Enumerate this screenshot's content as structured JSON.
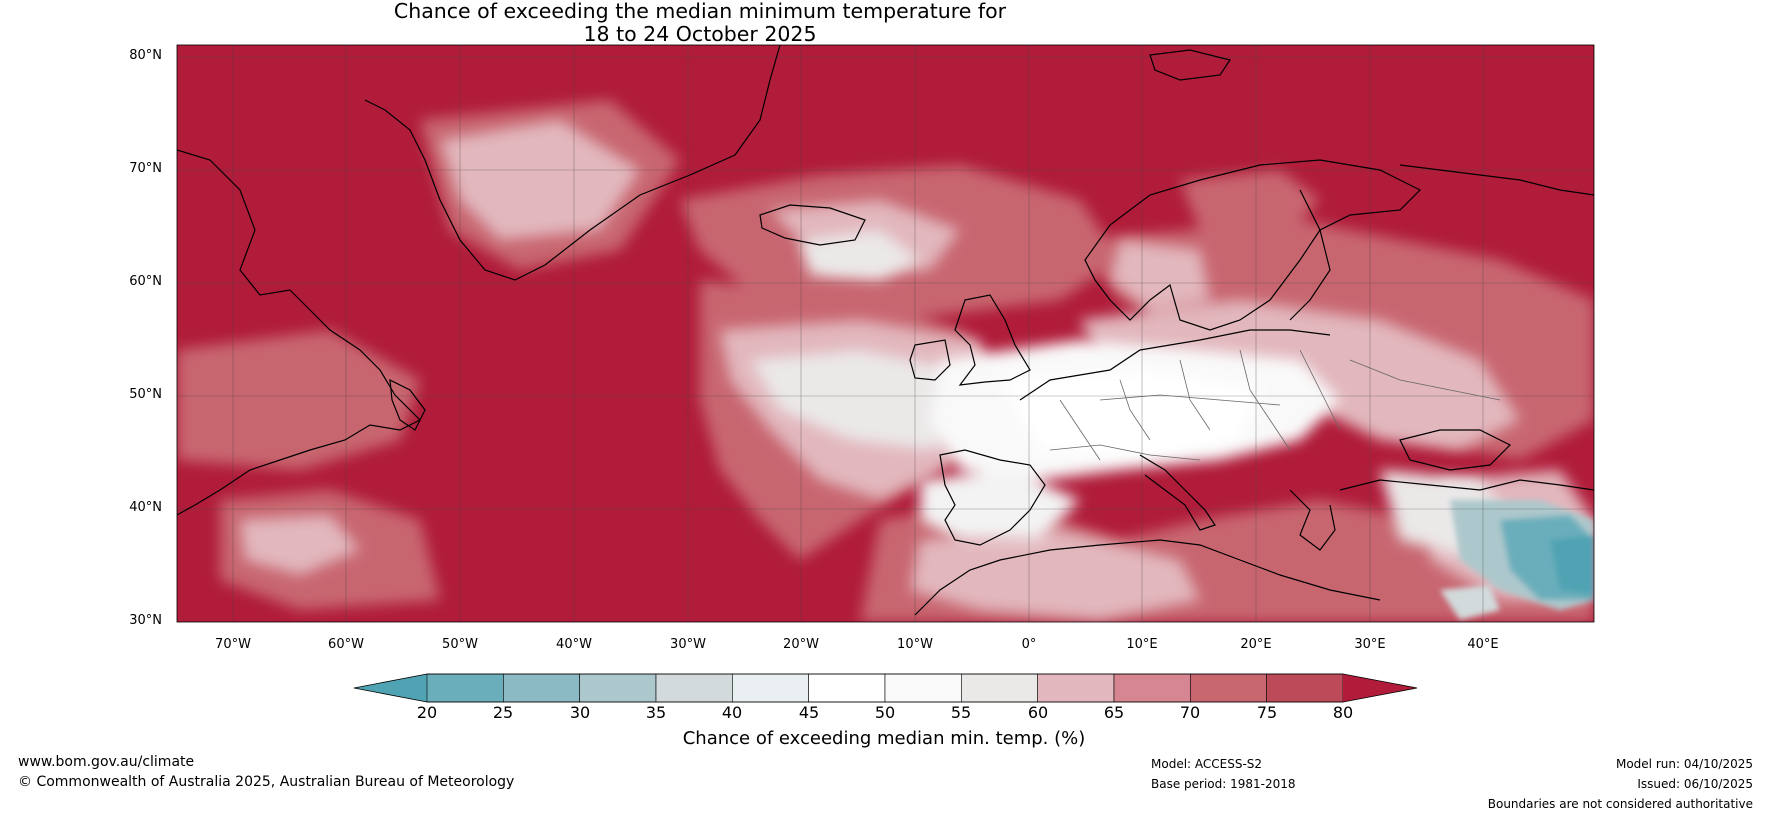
{
  "title_line1": "Chance of exceeding the median minimum temperature for",
  "title_line2": "18 to 24 October 2025",
  "lat_labels": [
    "80°N",
    "70°N",
    "60°N",
    "50°N",
    "40°N",
    "30°N"
  ],
  "lon_labels": [
    "70°W",
    "60°W",
    "50°W",
    "40°W",
    "30°W",
    "20°W",
    "10°W",
    "0°",
    "10°E",
    "20°E",
    "30°E",
    "40°E"
  ],
  "colorbar": {
    "ticks": [
      "20",
      "25",
      "30",
      "35",
      "40",
      "45",
      "50",
      "55",
      "60",
      "65",
      "70",
      "75",
      "80"
    ],
    "colors": [
      "#4fa3b3",
      "#6aaebb",
      "#8bb9c4",
      "#adc8cc",
      "#d2dadb",
      "#eaf0f1",
      "#ffffff",
      "#f9f9f9",
      "#ebe8e8",
      "#e2b7bd",
      "#d58690",
      "#c86670",
      "#bd4a58",
      "#b01c3a"
    ],
    "label": "Chance of exceeding median min. temp. (%)"
  },
  "colors": {
    "high": "#b01c3a",
    "mid_high": "#c86670",
    "mid": "#e2b7bd",
    "neutral": "#ffffff",
    "low": "#4fa3b3"
  },
  "footer": {
    "url": "www.bom.gov.au/climate",
    "copyright": "© Commonwealth of Australia 2025, Australian Bureau of Meteorology",
    "model": "Model: ACCESS-S2",
    "base_period": "Base period: 1981-2018",
    "model_run": "Model run: 04/10/2025",
    "issued": "Issued: 06/10/2025",
    "disclaimer": "Boundaries are not considered authoritative"
  }
}
